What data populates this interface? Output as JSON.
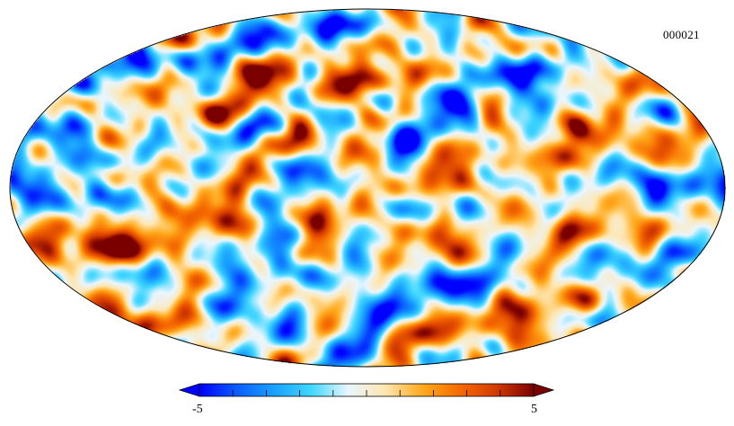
{
  "map": {
    "projection": "mollweide",
    "identifier": "000021",
    "colormap": "planck"
  },
  "colorbar": {
    "min_label": "-5",
    "max_label": "5",
    "min": -5,
    "max": 5,
    "colors": [
      "#0000ff",
      "#0b5dff",
      "#18a0ff",
      "#3fd6ff",
      "#e9f6ff",
      "#ffe6b0",
      "#ffab1e",
      "#f66a00",
      "#d33a00",
      "#7a0000"
    ]
  }
}
